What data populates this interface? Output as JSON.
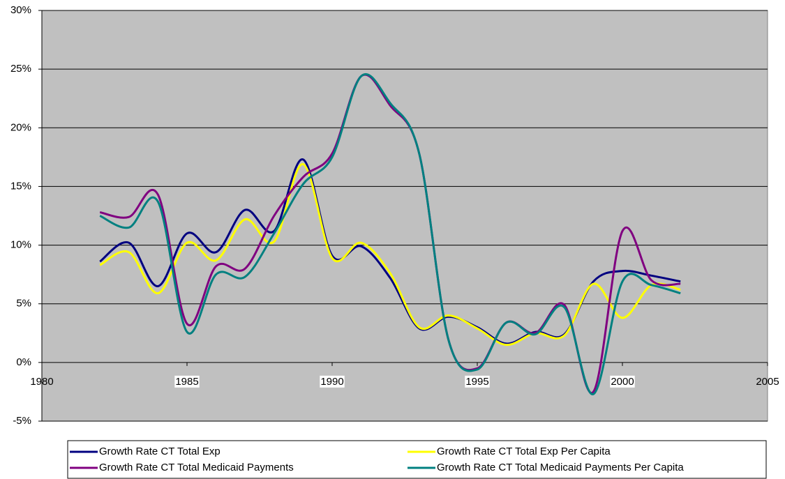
{
  "chart_data": {
    "type": "line",
    "x": [
      1982,
      1983,
      1984,
      1985,
      1986,
      1987,
      1988,
      1989,
      1990,
      1991,
      1992,
      1993,
      1994,
      1995,
      1996,
      1997,
      1998,
      1999,
      2000,
      2001,
      2002
    ],
    "series": [
      {
        "name": "Growth Rate CT Total Exp",
        "color": "#000080",
        "values": [
          8.6,
          10.2,
          6.5,
          11.0,
          9.4,
          13.0,
          11.2,
          17.3,
          9.1,
          9.9,
          7.2,
          2.9,
          3.9,
          3.0,
          1.6,
          2.6,
          2.4,
          6.9,
          7.8,
          7.4,
          6.9
        ]
      },
      {
        "name": "Growth Rate CT Total Exp Per Capita",
        "color": "#ffff00",
        "values": [
          8.3,
          9.4,
          5.9,
          10.2,
          8.7,
          12.2,
          10.3,
          16.9,
          8.9,
          10.2,
          7.6,
          3.0,
          4.0,
          2.9,
          1.5,
          2.5,
          2.3,
          6.7,
          3.8,
          6.6,
          6.2
        ]
      },
      {
        "name": "Growth Rate CT Total Medicaid Payments",
        "color": "#800080",
        "values": [
          12.8,
          12.4,
          14.3,
          3.3,
          8.2,
          8.0,
          12.5,
          15.8,
          17.8,
          24.4,
          21.9,
          17.8,
          2.0,
          -0.5,
          3.4,
          2.5,
          4.9,
          -2.5,
          11.2,
          7.0,
          6.7
        ]
      },
      {
        "name": "Growth Rate CT Total Medicaid Payments Per Capita",
        "color": "#008080",
        "values": [
          12.5,
          11.5,
          13.7,
          2.6,
          7.5,
          7.3,
          11.0,
          15.2,
          17.5,
          24.4,
          22.1,
          17.8,
          2.0,
          -0.6,
          3.4,
          2.4,
          4.7,
          -2.7,
          6.9,
          6.6,
          5.9
        ]
      }
    ],
    "xlim": [
      1980,
      2005
    ],
    "xticks": [
      1980,
      1985,
      1990,
      1995,
      2000,
      2005
    ],
    "ylim": [
      -5,
      30
    ],
    "yticks": [
      {
        "value": -5,
        "label": "-5%"
      },
      {
        "value": 0,
        "label": "0%"
      },
      {
        "value": 5,
        "label": "5%"
      },
      {
        "value": 10,
        "label": "10%"
      },
      {
        "value": 15,
        "label": "15%"
      },
      {
        "value": 20,
        "label": "20%"
      },
      {
        "value": 25,
        "label": "25%"
      },
      {
        "value": 30,
        "label": "30%"
      }
    ],
    "grid": true,
    "legend": "bottom",
    "background": "#c0c0c0"
  }
}
